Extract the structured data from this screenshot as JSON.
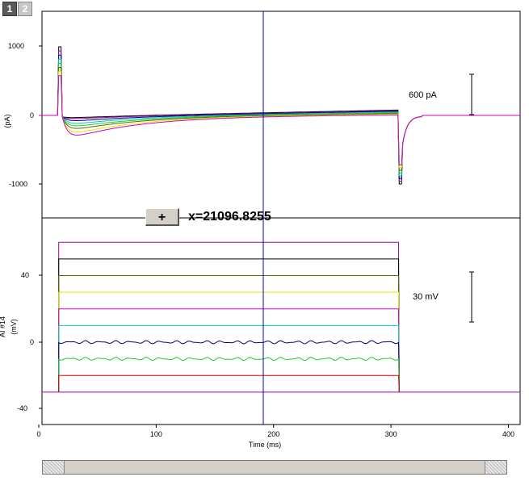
{
  "tabs": [
    "1",
    "2"
  ],
  "cursor": {
    "button_label": "+",
    "readout": "x=21096.8255"
  },
  "colors": {
    "frame": "#000000",
    "cursor_line": "#0000cc",
    "black": "#000000",
    "purple": "#9900aa",
    "olive": "#556b00",
    "yellow": "#e8e800",
    "magenta": "#cc00cc",
    "cyan": "#00cccc",
    "navy": "#000080",
    "green": "#22cc22",
    "red": "#dd0000",
    "blue": "#0000ff"
  },
  "chart_data": [
    {
      "type": "line",
      "ylabel": "(pA)",
      "yticks": [
        "1000",
        "0",
        "-1000"
      ],
      "ylim": [
        -1500,
        1500
      ],
      "xlim": [
        0,
        410
      ],
      "scale_bar": "600 pA",
      "series": [
        {
          "color": "black",
          "baseline": 0,
          "drift_end": 80,
          "sag": 20
        },
        {
          "color": "purple",
          "baseline": 0,
          "drift_end": 70,
          "sag": 40
        },
        {
          "color": "navy",
          "baseline": 0,
          "drift_end": 60,
          "sag": 80
        },
        {
          "color": "cyan",
          "baseline": 0,
          "drift_end": 50,
          "sag": 130
        },
        {
          "color": "green",
          "baseline": 0,
          "drift_end": 40,
          "sag": 180
        },
        {
          "color": "olive",
          "baseline": 0,
          "drift_end": 30,
          "sag": 230
        },
        {
          "color": "yellow",
          "baseline": 0,
          "drift_end": 20,
          "sag": 300
        },
        {
          "color": "magenta",
          "baseline": 0,
          "drift_end": 10,
          "sag": 360
        }
      ]
    },
    {
      "type": "line",
      "ylabel": "(mV)",
      "side_label": "AI #14",
      "yticks": [
        "40",
        "0",
        "-40"
      ],
      "ylim": [
        -50,
        60
      ],
      "xlim": [
        0,
        410
      ],
      "xlabel": "Time (ms)",
      "xticks": [
        "0",
        "100",
        "200",
        "300",
        "400"
      ],
      "scale_bar": "30 mV",
      "holding": -30,
      "steps": [
        {
          "color": "purple",
          "value": 60
        },
        {
          "color": "black",
          "value": 50
        },
        {
          "color": "olive",
          "value": 40
        },
        {
          "color": "yellow",
          "value": 30
        },
        {
          "color": "magenta",
          "value": 20
        },
        {
          "color": "cyan",
          "value": 10
        },
        {
          "color": "navy",
          "value": 0
        },
        {
          "color": "green",
          "value": -10
        },
        {
          "color": "red",
          "value": -20
        }
      ],
      "step_on_ms": 17,
      "step_off_ms": 307
    }
  ]
}
